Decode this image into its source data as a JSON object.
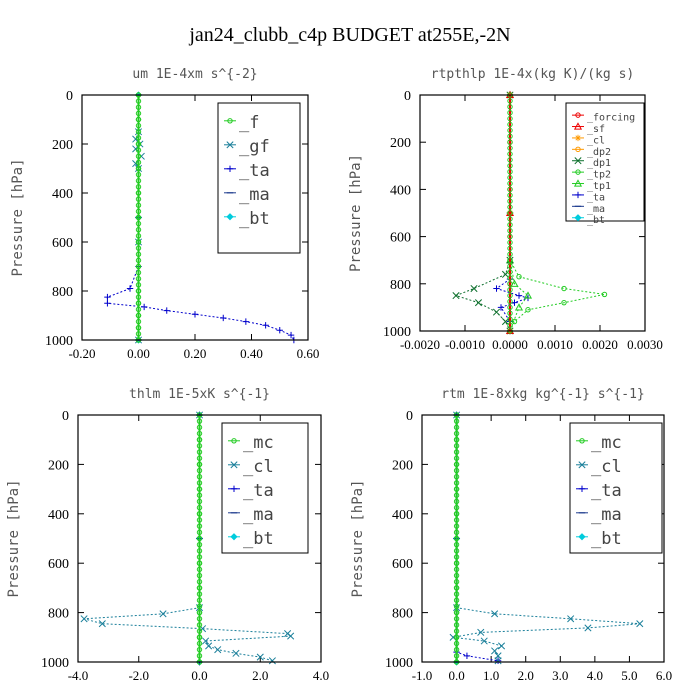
{
  "figure": {
    "title": "jan24_clubb_c4p  BUDGET at255E,-2N"
  },
  "colors": {
    "green": "#22cc22",
    "blue": "#0000cc",
    "navy": "#1f3d8f",
    "teal": "#1a7f9a",
    "cyan": "#00ccdd",
    "red": "#ee0000",
    "orange": "#ff9900",
    "dkgreen": "#0b6e2b",
    "black": "#000000"
  },
  "chart_data": [
    {
      "type": "line",
      "title": "um  1E-4xm s^{-2}",
      "ylabel": "Pressure [hPa]",
      "xlim": [
        -0.2,
        0.6
      ],
      "ylim": [
        1000,
        0
      ],
      "xticks": [
        -0.2,
        0.0,
        0.2,
        0.4,
        0.6
      ],
      "xtick_labels": [
        "-0.20",
        "0.00",
        "0.20",
        "0.40",
        "0.60"
      ],
      "yticks": [
        0,
        200,
        400,
        600,
        800,
        1000
      ],
      "legend_position": "top-right",
      "series": [
        {
          "name": "_f",
          "color": "green",
          "marker": "circle",
          "points": [
            [
              0,
              0
            ],
            [
              0,
              100
            ],
            [
              0,
              200
            ],
            [
              0,
              300
            ],
            [
              0,
              400
            ],
            [
              0,
              500
            ],
            [
              0,
              600
            ],
            [
              0,
              700
            ],
            [
              0,
              800
            ],
            [
              0,
              850
            ],
            [
              0,
              900
            ],
            [
              0,
              950
            ],
            [
              0,
              1000
            ]
          ]
        },
        {
          "name": "_gf",
          "color": "teal",
          "marker": "cross",
          "points": [
            [
              0,
              150
            ],
            [
              -0.01,
              180
            ],
            [
              0.005,
              200
            ],
            [
              -0.01,
              220
            ],
            [
              0.01,
              250
            ],
            [
              -0.01,
              280
            ],
            [
              0,
              300
            ],
            [
              0,
              600
            ],
            [
              0,
              1000
            ]
          ]
        },
        {
          "name": "_ta",
          "color": "blue",
          "marker": "plus",
          "points": [
            [
              0,
              700
            ],
            [
              -0.03,
              790
            ],
            [
              -0.11,
              825
            ],
            [
              -0.11,
              850
            ],
            [
              0.02,
              865
            ],
            [
              0.1,
              880
            ],
            [
              0.2,
              895
            ],
            [
              0.3,
              910
            ],
            [
              0.38,
              925
            ],
            [
              0.45,
              940
            ],
            [
              0.5,
              960
            ],
            [
              0.54,
              980
            ],
            [
              0.55,
              1000
            ]
          ]
        },
        {
          "name": "_ma",
          "color": "navy",
          "marker": "dash",
          "points": [
            [
              0,
              0
            ],
            [
              0,
              500
            ],
            [
              0,
              1000
            ]
          ]
        },
        {
          "name": "_bt",
          "color": "cyan",
          "marker": "diamond",
          "points": [
            [
              0,
              0
            ],
            [
              0,
              500
            ],
            [
              0,
              1000
            ]
          ]
        }
      ]
    },
    {
      "type": "line",
      "title": "rtpthlp  1E-4x(kg K)/(kg s)",
      "ylabel": "Pressure [hPa]",
      "xlim": [
        -0.002,
        0.003
      ],
      "ylim": [
        1000,
        0
      ],
      "xticks": [
        -0.002,
        -0.001,
        0.0,
        0.001,
        0.002,
        0.003
      ],
      "xtick_labels": [
        "-0.0020",
        "-0.0010",
        "0.0000",
        "0.0010",
        "0.0020",
        "0.0030"
      ],
      "yticks": [
        0,
        200,
        400,
        600,
        800,
        1000
      ],
      "legend_position": "top-right",
      "series": [
        {
          "name": "_forcing",
          "color": "red",
          "marker": "circle",
          "points": [
            [
              0,
              0
            ],
            [
              0,
              200
            ],
            [
              0,
              400
            ],
            [
              0,
              600
            ],
            [
              0,
              800
            ],
            [
              0,
              1000
            ]
          ]
        },
        {
          "name": "_sf",
          "color": "red",
          "marker": "tri",
          "points": [
            [
              0,
              0
            ],
            [
              0,
              500
            ],
            [
              0,
              1000
            ]
          ]
        },
        {
          "name": "_cl",
          "color": "orange",
          "marker": "star",
          "points": [
            [
              0,
              0
            ],
            [
              0,
              500
            ],
            [
              0,
              1000
            ]
          ]
        },
        {
          "name": "_dp2",
          "color": "orange",
          "marker": "circle",
          "points": [
            [
              0,
              0
            ],
            [
              0,
              500
            ],
            [
              0,
              1000
            ]
          ]
        },
        {
          "name": "_dp1",
          "color": "dkgreen",
          "marker": "cross",
          "points": [
            [
              0,
              0
            ],
            [
              0,
              700
            ],
            [
              -0.0001,
              760
            ],
            [
              -0.0008,
              820
            ],
            [
              -0.0012,
              850
            ],
            [
              -0.0007,
              880
            ],
            [
              -0.0003,
              920
            ],
            [
              -0.0001,
              960
            ],
            [
              0,
              1000
            ]
          ]
        },
        {
          "name": "_tp2",
          "color": "green",
          "marker": "circle",
          "points": [
            [
              0,
              0
            ],
            [
              0,
              700
            ],
            [
              0.0002,
              770
            ],
            [
              0.0012,
              820
            ],
            [
              0.0021,
              845
            ],
            [
              0.0012,
              880
            ],
            [
              0.0004,
              910
            ],
            [
              0.0001,
              960
            ],
            [
              0,
              1000
            ]
          ]
        },
        {
          "name": "_tp1",
          "color": "green",
          "marker": "tri",
          "points": [
            [
              0,
              0
            ],
            [
              0,
              700
            ],
            [
              0.0001,
              800
            ],
            [
              0.0004,
              850
            ],
            [
              0.0002,
              900
            ],
            [
              0,
              1000
            ]
          ]
        },
        {
          "name": "_ta",
          "color": "blue",
          "marker": "plus",
          "points": [
            [
              0,
              0
            ],
            [
              0,
              780
            ],
            [
              -0.0003,
              820
            ],
            [
              0.0002,
              850
            ],
            [
              0.0004,
              860
            ],
            [
              0.0001,
              880
            ],
            [
              -0.0002,
              900
            ],
            [
              0,
              960
            ],
            [
              0,
              1000
            ]
          ]
        },
        {
          "name": "_ma",
          "color": "navy",
          "marker": "dash",
          "points": [
            [
              0,
              0
            ],
            [
              0,
              500
            ],
            [
              0,
              1000
            ]
          ]
        },
        {
          "name": "_bt",
          "color": "cyan",
          "marker": "diamond",
          "points": [
            [
              0,
              0
            ],
            [
              0,
              500
            ],
            [
              0,
              1000
            ]
          ]
        }
      ]
    },
    {
      "type": "line",
      "title": "thlm  1E-5xK s^{-1}",
      "ylabel": "Pressure [hPa]",
      "xlim": [
        -4,
        4
      ],
      "ylim": [
        1000,
        0
      ],
      "xticks": [
        -4,
        -2,
        0,
        2,
        4
      ],
      "xtick_labels": [
        "-4.0",
        "-2.0",
        "0.0",
        "2.0",
        "4.0"
      ],
      "yticks": [
        0,
        200,
        400,
        600,
        800,
        1000
      ],
      "legend_position": "top-right",
      "series": [
        {
          "name": "_mc",
          "color": "green",
          "marker": "circle",
          "points": [
            [
              0,
              0
            ],
            [
              0,
              100
            ],
            [
              0,
              200
            ],
            [
              0,
              300
            ],
            [
              0,
              400
            ],
            [
              0,
              500
            ],
            [
              0,
              600
            ],
            [
              0,
              700
            ],
            [
              0,
              800
            ],
            [
              0,
              900
            ],
            [
              0,
              1000
            ]
          ]
        },
        {
          "name": "_cl",
          "color": "teal",
          "marker": "cross",
          "points": [
            [
              0,
              0
            ],
            [
              0,
              780
            ],
            [
              -1.2,
              805
            ],
            [
              -3.8,
              825
            ],
            [
              -3.2,
              845
            ],
            [
              0.1,
              865
            ],
            [
              2.9,
              885
            ],
            [
              3.0,
              895
            ],
            [
              0.2,
              915
            ],
            [
              0.3,
              935
            ],
            [
              0.6,
              950
            ],
            [
              1.2,
              965
            ],
            [
              2.0,
              980
            ],
            [
              2.4,
              995
            ]
          ]
        },
        {
          "name": "_ta",
          "color": "blue",
          "marker": "plus",
          "points": [
            [
              0,
              0
            ],
            [
              0,
              500
            ],
            [
              0,
              1000
            ]
          ]
        },
        {
          "name": "_ma",
          "color": "navy",
          "marker": "dash",
          "points": [
            [
              0,
              0
            ],
            [
              0,
              500
            ],
            [
              0,
              1000
            ]
          ]
        },
        {
          "name": "_bt",
          "color": "cyan",
          "marker": "diamond",
          "points": [
            [
              0,
              0
            ],
            [
              0,
              500
            ],
            [
              0,
              1000
            ]
          ]
        }
      ]
    },
    {
      "type": "line",
      "title": "rtm  1E-8xkg kg^{-1} s^{-1}",
      "ylabel": "Pressure [hPa]",
      "xlim": [
        -1,
        6
      ],
      "ylim": [
        1000,
        0
      ],
      "xticks": [
        -1,
        0,
        1,
        2,
        3,
        4,
        5,
        6
      ],
      "xtick_labels": [
        "-1.0",
        "0.0",
        "1.0",
        "2.0",
        "3.0",
        "4.0",
        "5.0",
        "6.0"
      ],
      "yticks": [
        0,
        200,
        400,
        600,
        800,
        1000
      ],
      "legend_position": "top-right",
      "series": [
        {
          "name": "_mc",
          "color": "green",
          "marker": "circle",
          "points": [
            [
              0,
              0
            ],
            [
              0,
              100
            ],
            [
              0,
              200
            ],
            [
              0,
              300
            ],
            [
              0,
              400
            ],
            [
              0,
              500
            ],
            [
              0,
              600
            ],
            [
              0,
              700
            ],
            [
              0,
              800
            ],
            [
              0,
              900
            ],
            [
              0,
              1000
            ]
          ]
        },
        {
          "name": "_cl",
          "color": "teal",
          "marker": "cross",
          "points": [
            [
              0,
              0
            ],
            [
              0,
              780
            ],
            [
              1.1,
              805
            ],
            [
              3.3,
              825
            ],
            [
              5.3,
              845
            ],
            [
              3.8,
              862
            ],
            [
              0.7,
              880
            ],
            [
              -0.1,
              900
            ],
            [
              0.8,
              915
            ],
            [
              1.3,
              935
            ],
            [
              1.1,
              955
            ],
            [
              1.2,
              975
            ],
            [
              1.2,
              995
            ]
          ]
        },
        {
          "name": "_ta",
          "color": "blue",
          "marker": "plus",
          "points": [
            [
              0,
              0
            ],
            [
              0,
              500
            ],
            [
              0,
              960
            ],
            [
              0.3,
              975
            ],
            [
              1.2,
              995
            ]
          ]
        },
        {
          "name": "_ma",
          "color": "navy",
          "marker": "dash",
          "points": [
            [
              0,
              0
            ],
            [
              0,
              500
            ],
            [
              0,
              1000
            ]
          ]
        },
        {
          "name": "_bt",
          "color": "cyan",
          "marker": "diamond",
          "points": [
            [
              0,
              0
            ],
            [
              0,
              500
            ],
            [
              0,
              1000
            ]
          ]
        }
      ]
    }
  ]
}
